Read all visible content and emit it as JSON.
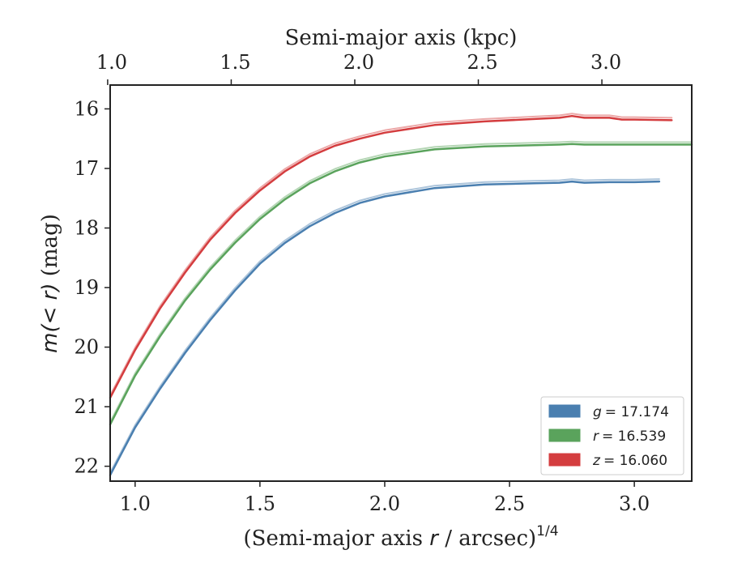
{
  "chart_data": {
    "type": "line",
    "xlabel_prefix": "(Semi-major axis ",
    "xlabel_var": "r",
    "xlabel_suffix": " / arcsec)",
    "xlabel_sup": "1/4",
    "top_xlabel": "Semi-major axis (kpc)",
    "ylabel_var": "m(< r)",
    "ylabel_unit": " (mag)",
    "xlim": [
      0.9,
      3.23
    ],
    "ylim": [
      22.25,
      15.6
    ],
    "y_inverted": true,
    "x_ticks": [
      1.0,
      1.5,
      2.0,
      2.5,
      3.0
    ],
    "x_tick_labels": [
      "1.0",
      "1.5",
      "2.0",
      "2.5",
      "3.0"
    ],
    "top_ticks": [
      1.0,
      1.5,
      2.0,
      2.5,
      3.0
    ],
    "top_tick_labels": [
      "1.0",
      "1.5",
      "2.0",
      "2.5",
      "3.0"
    ],
    "top_tick_positions_bottom_units": [
      0.89,
      1.385,
      1.88,
      2.375,
      2.87
    ],
    "y_ticks": [
      16,
      17,
      18,
      19,
      20,
      21,
      22
    ],
    "y_tick_labels": [
      "16",
      "17",
      "18",
      "19",
      "20",
      "21",
      "22"
    ],
    "legend_position": "lower-right",
    "series": [
      {
        "name": "g = 17.174",
        "legend_var": "g",
        "legend_value": "= 17.174",
        "color": "#4a7fb0",
        "x": [
          0.9,
          1.0,
          1.1,
          1.2,
          1.3,
          1.4,
          1.5,
          1.6,
          1.7,
          1.8,
          1.9,
          2.0,
          2.2,
          2.4,
          2.6,
          2.7,
          2.75,
          2.8,
          2.9,
          3.0,
          3.1
        ],
        "values": [
          22.15,
          21.35,
          20.7,
          20.1,
          19.55,
          19.05,
          18.6,
          18.25,
          17.97,
          17.75,
          17.58,
          17.47,
          17.33,
          17.27,
          17.25,
          17.24,
          17.22,
          17.24,
          17.23,
          17.23,
          17.22
        ]
      },
      {
        "name": "r = 16.539",
        "legend_var": "r",
        "legend_value": "= 16.539",
        "color": "#5aa35c",
        "x": [
          0.9,
          1.0,
          1.1,
          1.2,
          1.3,
          1.4,
          1.5,
          1.6,
          1.7,
          1.8,
          1.9,
          2.0,
          2.2,
          2.4,
          2.6,
          2.7,
          2.75,
          2.8,
          2.9,
          3.0,
          3.1,
          3.23
        ],
        "values": [
          21.3,
          20.48,
          19.82,
          19.22,
          18.7,
          18.25,
          17.85,
          17.52,
          17.25,
          17.05,
          16.9,
          16.8,
          16.68,
          16.63,
          16.61,
          16.6,
          16.59,
          16.6,
          16.6,
          16.6,
          16.6,
          16.6
        ]
      },
      {
        "name": "z = 16.060",
        "legend_var": "z",
        "legend_value": "= 16.060",
        "color": "#d43d3f",
        "x": [
          0.9,
          1.0,
          1.1,
          1.2,
          1.3,
          1.4,
          1.5,
          1.6,
          1.7,
          1.8,
          1.9,
          2.0,
          2.2,
          2.4,
          2.6,
          2.7,
          2.75,
          2.8,
          2.9,
          2.95,
          3.0,
          3.15
        ],
        "values": [
          20.85,
          20.05,
          19.35,
          18.75,
          18.2,
          17.75,
          17.37,
          17.05,
          16.8,
          16.62,
          16.5,
          16.4,
          16.27,
          16.21,
          16.17,
          16.15,
          16.12,
          16.15,
          16.15,
          16.18,
          16.18,
          16.19
        ]
      }
    ]
  }
}
